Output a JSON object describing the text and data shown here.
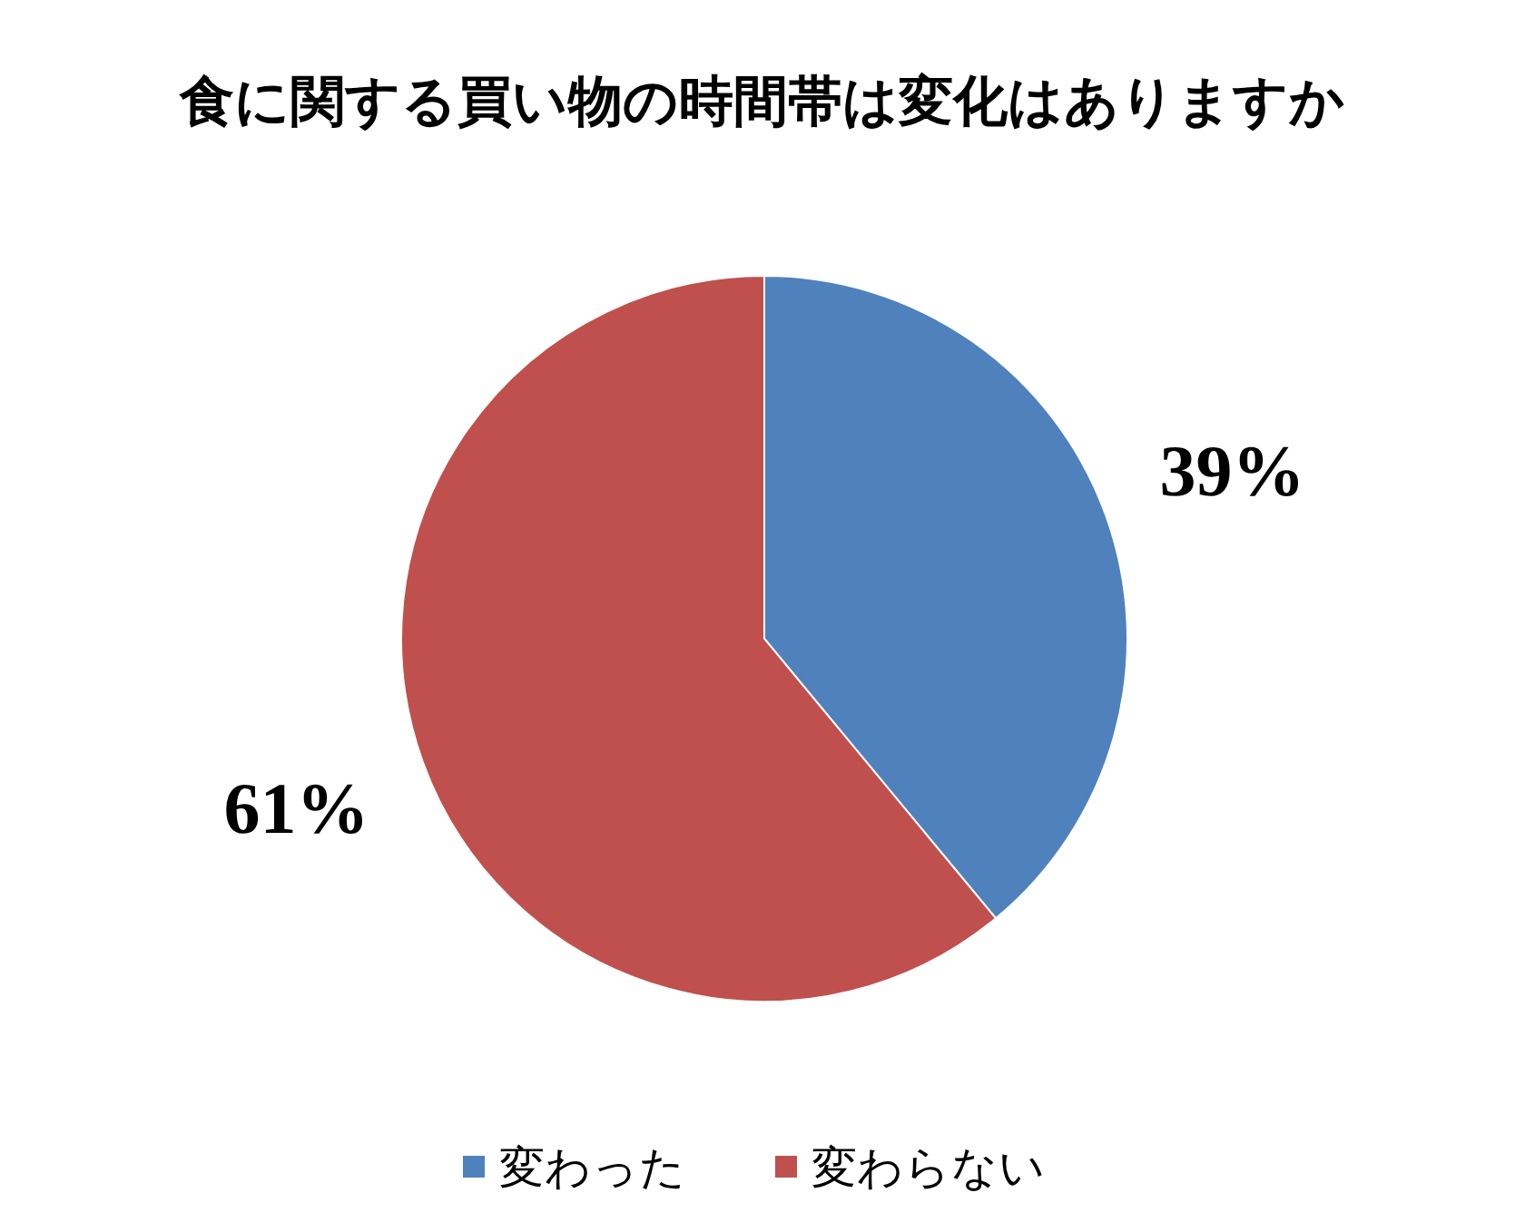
{
  "chart_data": {
    "type": "pie",
    "title": "食に関する買い物の時間帯は変化はありますか",
    "categories": [
      "変わった",
      "変わらない"
    ],
    "values": [
      39,
      61
    ],
    "colors": [
      "#4f81bd",
      "#c0504d"
    ],
    "value_labels": [
      "39%",
      "61%"
    ],
    "legend": "bottom"
  }
}
